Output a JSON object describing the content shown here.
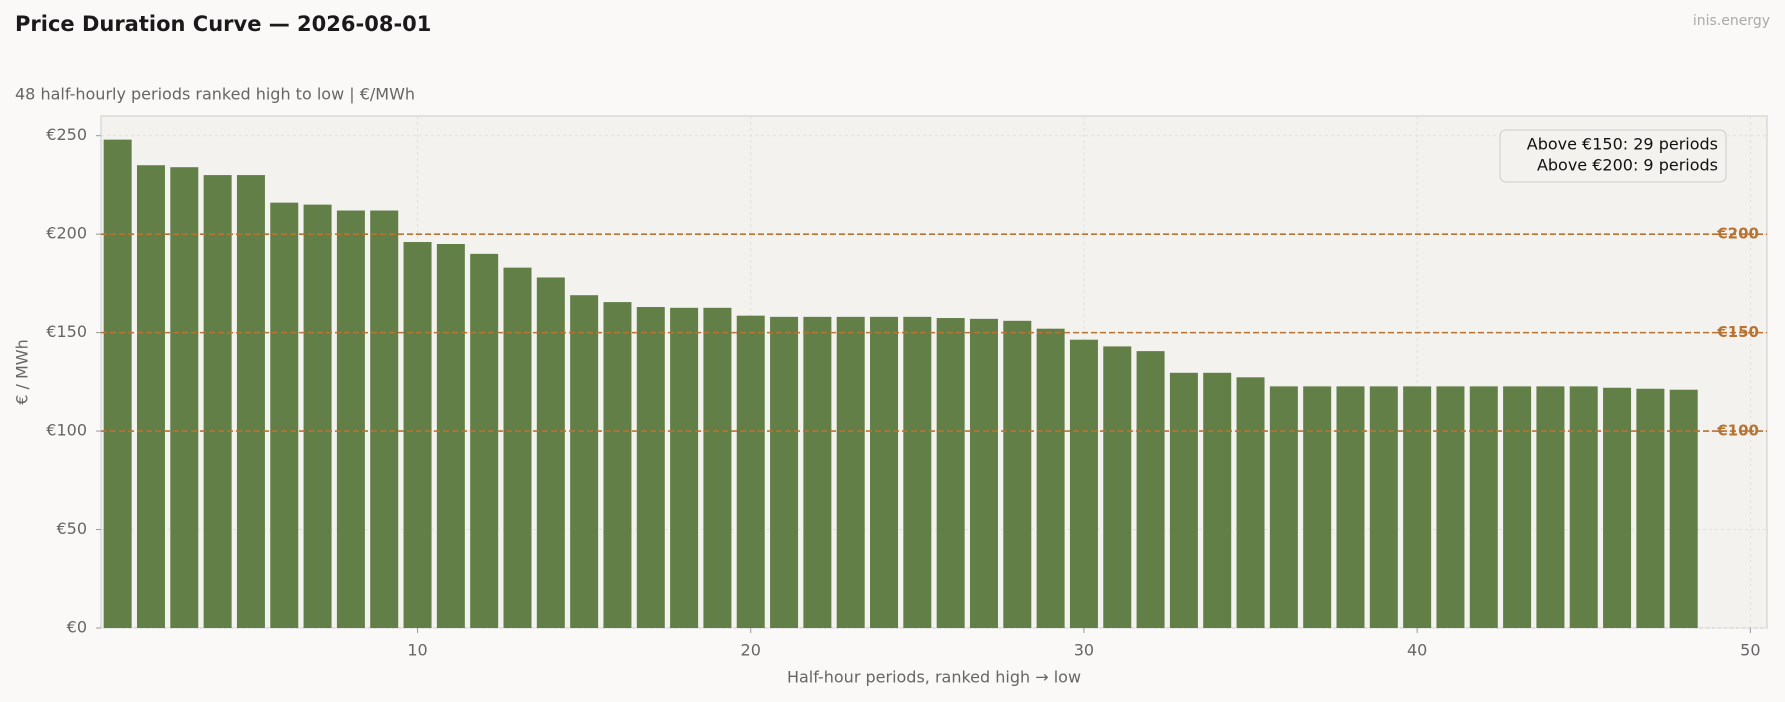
{
  "chart_data": {
    "type": "bar",
    "title": "Price Duration Curve — 2026-08-01",
    "subtitle": "48 half-hourly periods ranked high to low  |  €/MWh",
    "watermark": "inis.energy",
    "x_label": "Half-hour periods, ranked high → low",
    "y_label": "€ / MWh",
    "x": [
      1,
      2,
      3,
      4,
      5,
      6,
      7,
      8,
      9,
      10,
      11,
      12,
      13,
      14,
      15,
      16,
      17,
      18,
      19,
      20,
      21,
      22,
      23,
      24,
      25,
      26,
      27,
      28,
      29,
      30,
      31,
      32,
      33,
      34,
      35,
      36,
      37,
      38,
      39,
      40,
      41,
      42,
      43,
      44,
      45,
      46,
      47,
      48
    ],
    "values": [
      248,
      235,
      234,
      230,
      230,
      216,
      215,
      212,
      212,
      196,
      195,
      190,
      183,
      178,
      169,
      165.5,
      163,
      162.6,
      162.6,
      158.6,
      158,
      158,
      158,
      158,
      158,
      157.4,
      157,
      156,
      152,
      146.4,
      143,
      140.6,
      129.6,
      129.6,
      127.3,
      122.7,
      122.7,
      122.7,
      122.7,
      122.7,
      122.7,
      122.7,
      122.7,
      122.7,
      122.7,
      122,
      121.5,
      121
    ],
    "color": "#617f47",
    "xlim": [
      0.5,
      50.5
    ],
    "xticks": [
      10,
      20,
      30,
      40,
      50
    ],
    "ylim": [
      0,
      260
    ],
    "yticks": [
      {
        "value": 0,
        "label": "€0"
      },
      {
        "value": 50,
        "label": "€50"
      },
      {
        "value": 100,
        "label": "€100"
      },
      {
        "value": 150,
        "label": "€150"
      },
      {
        "value": 200,
        "label": "€200"
      },
      {
        "value": 250,
        "label": "€250"
      }
    ],
    "ref_lines": [
      {
        "value": 200,
        "label": "€200"
      },
      {
        "value": 150,
        "label": "€150"
      },
      {
        "value": 100,
        "label": "€100"
      }
    ],
    "ref_color": "#b87333",
    "annotations": [
      "Above €150: 29 periods",
      "Above €200: 9 periods"
    ],
    "grid": true
  }
}
